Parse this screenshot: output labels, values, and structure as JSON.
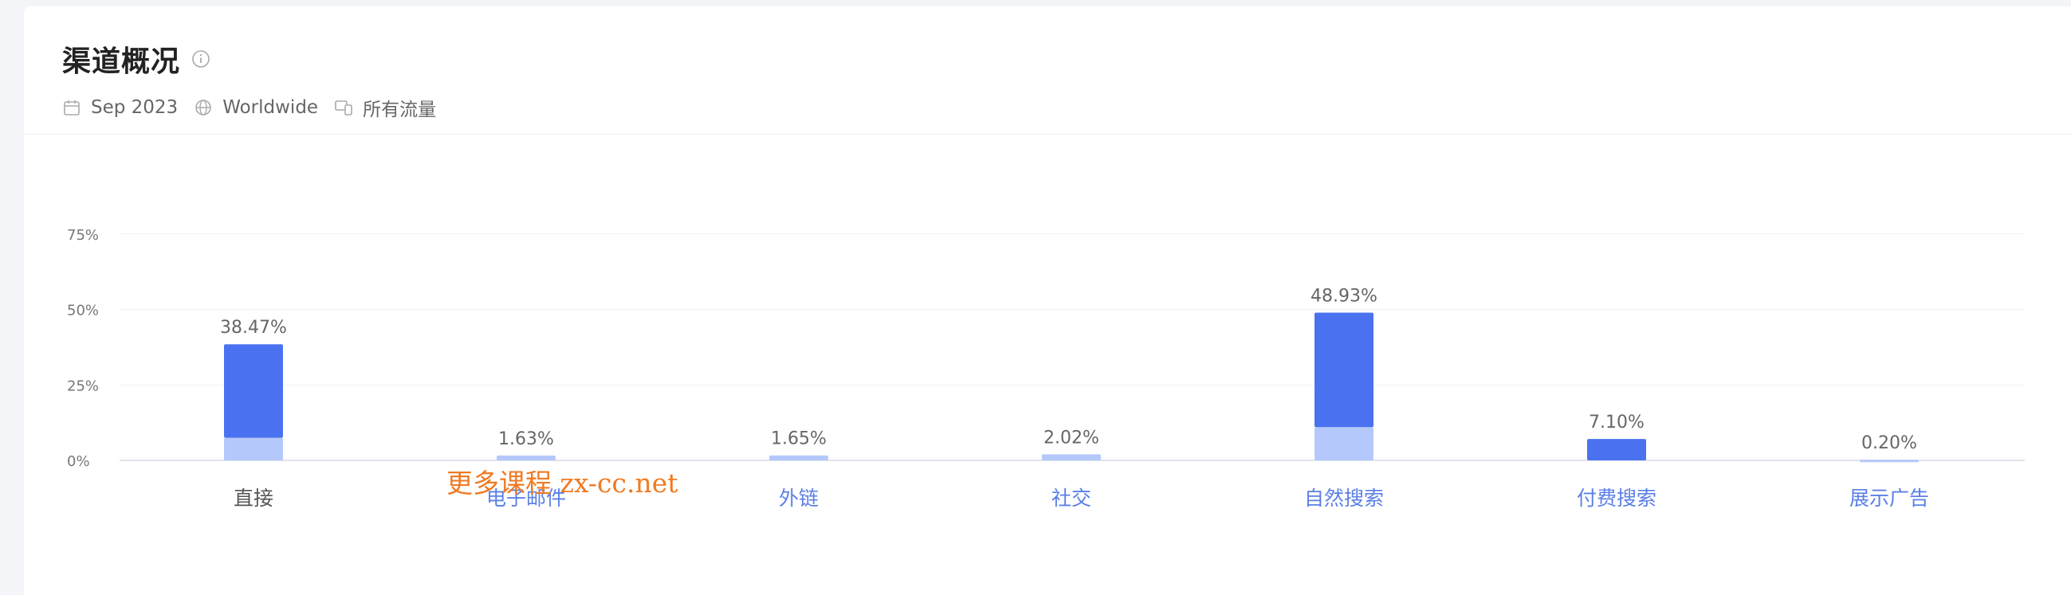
{
  "header": {
    "title": "渠道概况",
    "date": "Sep 2023",
    "region": "Worldwide",
    "traffic": "所有流量"
  },
  "icons": {
    "info": "info-icon",
    "date": "calendar-icon",
    "region": "globe-icon",
    "traffic": "devices-icon"
  },
  "watermark": "更多课程 zx-cc.net",
  "colors": {
    "bar_dark": "#4a72f0",
    "bar_light": "#b4c8fb",
    "axis": "#e0e3ea",
    "label_dark": "#555555",
    "label_blue": "#5b7fe6"
  },
  "chart_data": {
    "type": "bar",
    "stacked": true,
    "categories": [
      "直接",
      "电子邮件",
      "外链",
      "社交",
      "自然搜索",
      "付费搜索",
      "展示广告"
    ],
    "totals": [
      38.47,
      1.63,
      1.65,
      2.02,
      48.93,
      7.1,
      0.2
    ],
    "value_labels": [
      "38.47%",
      "1.63%",
      "1.65%",
      "2.02%",
      "48.93%",
      "7.10%",
      "0.20%"
    ],
    "series": [
      {
        "values": [
          7.5,
          1.63,
          1.65,
          2.02,
          11.0,
          0,
          0.2
        ]
      },
      {
        "values": [
          30.97,
          0,
          0,
          0,
          37.93,
          7.1,
          0
        ]
      }
    ],
    "y_ticks": [
      "0%",
      "25%",
      "50%",
      "75%"
    ],
    "ylim": [
      0,
      75
    ],
    "grid": true
  }
}
